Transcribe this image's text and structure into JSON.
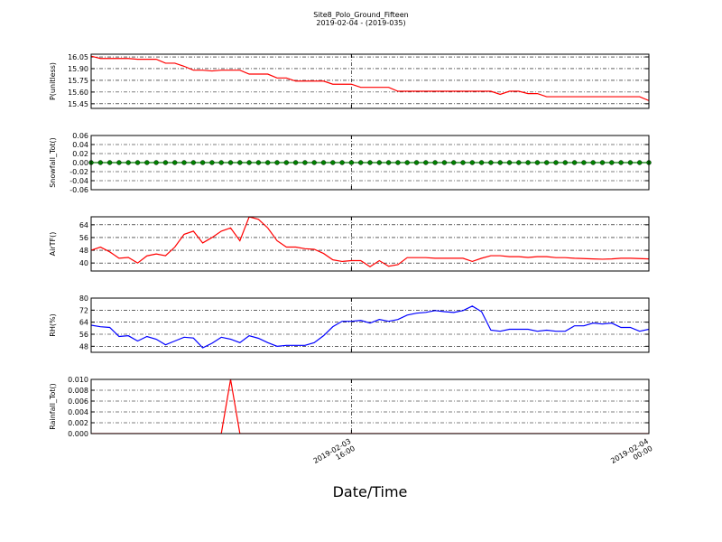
{
  "chart_data": {
    "type": "multi-panel-line",
    "title": "Site8_Polo_Ground_Fifteen",
    "subtitle": "2019-02-04 - (2019-035)",
    "xlabel": "Date/Time",
    "x": [
      "2019-02-03 09:00",
      "2019-02-03 09:15",
      "2019-02-03 09:30",
      "2019-02-03 09:45",
      "2019-02-03 10:00",
      "2019-02-03 10:15",
      "2019-02-03 10:30",
      "2019-02-03 10:45",
      "2019-02-03 11:00",
      "2019-02-03 11:15",
      "2019-02-03 11:30",
      "2019-02-03 11:45",
      "2019-02-03 12:00",
      "2019-02-03 12:15",
      "2019-02-03 12:30",
      "2019-02-03 12:45",
      "2019-02-03 13:00",
      "2019-02-03 13:15",
      "2019-02-03 13:30",
      "2019-02-03 13:45",
      "2019-02-03 14:00",
      "2019-02-03 14:15",
      "2019-02-03 14:30",
      "2019-02-03 14:45",
      "2019-02-03 15:00",
      "2019-02-03 15:15",
      "2019-02-03 15:30",
      "2019-02-03 15:45",
      "2019-02-03 16:00",
      "2019-02-03 16:15",
      "2019-02-03 16:30",
      "2019-02-03 16:45",
      "2019-02-03 17:00",
      "2019-02-03 17:15",
      "2019-02-03 17:30",
      "2019-02-03 17:45",
      "2019-02-03 18:00",
      "2019-02-03 18:15",
      "2019-02-03 18:30",
      "2019-02-03 18:45",
      "2019-02-03 19:00",
      "2019-02-03 19:15",
      "2019-02-03 19:30",
      "2019-02-03 19:45",
      "2019-02-03 20:00",
      "2019-02-03 20:15",
      "2019-02-03 20:30",
      "2019-02-03 20:45",
      "2019-02-03 21:00",
      "2019-02-03 21:15",
      "2019-02-03 21:30",
      "2019-02-03 21:45",
      "2019-02-03 22:00",
      "2019-02-03 22:15",
      "2019-02-03 22:30",
      "2019-02-03 22:45",
      "2019-02-03 23:00",
      "2019-02-03 23:15",
      "2019-02-03 23:30",
      "2019-02-03 23:45",
      "2019-02-04 00:00"
    ],
    "xlim": [
      "2019-02-03 09:00",
      "2019-02-04 00:00"
    ],
    "xticks": [
      "2019-02-03 16:00",
      "2019-02-04 00:00"
    ],
    "grid": true,
    "panels": [
      {
        "ylabel": "P(unitless)",
        "ylim": [
          15.39,
          16.085
        ],
        "yticks": [
          15.45,
          {
            "value": 15.6,
            "label": "15.60"
          },
          15.75,
          {
            "value": 15.9,
            "label": "15.90"
          },
          16.05
        ],
        "series": [
          {
            "color": "#ff0000",
            "marker": false,
            "values": [
              16.06,
              16.03,
              16.03,
              16.03,
              16.03,
              16.02,
              16.02,
              16.02,
              15.97,
              15.97,
              15.93,
              15.88,
              15.88,
              15.87,
              15.88,
              15.88,
              15.88,
              15.83,
              15.83,
              15.83,
              15.78,
              15.78,
              15.74,
              15.74,
              15.74,
              15.74,
              15.7,
              15.7,
              15.7,
              15.66,
              15.66,
              15.66,
              15.66,
              15.61,
              15.61,
              15.61,
              15.61,
              15.61,
              15.61,
              15.61,
              15.61,
              15.61,
              15.61,
              15.61,
              15.57,
              15.61,
              15.61,
              15.58,
              15.58,
              15.54,
              15.54,
              15.54,
              15.54,
              15.54,
              15.54,
              15.54,
              15.54,
              15.54,
              15.54,
              15.54,
              15.49
            ]
          }
        ]
      },
      {
        "ylabel": "Snowfall_Tot()",
        "ylim": [
          -0.06,
          0.06
        ],
        "yticks": [
          -0.06,
          -0.04,
          -0.02,
          {
            "value": 0,
            "label": "0.00"
          },
          0.02,
          0.04,
          0.06
        ],
        "series": [
          {
            "color": "#008000",
            "marker": true,
            "values": [
              0,
              0,
              0,
              0,
              0,
              0,
              0,
              0,
              0,
              0,
              0,
              0,
              0,
              0,
              0,
              0,
              0,
              0,
              0,
              0,
              0,
              0,
              0,
              0,
              0,
              0,
              0,
              0,
              0,
              0,
              0,
              0,
              0,
              0,
              0,
              0,
              0,
              0,
              0,
              0,
              0,
              0,
              0,
              0,
              0,
              0,
              0,
              0,
              0,
              0,
              0,
              0,
              0,
              0,
              0,
              0,
              0,
              0,
              0,
              0,
              0
            ]
          }
        ]
      },
      {
        "ylabel": "AirTF()",
        "ylim": [
          35,
          69
        ],
        "yticks": [
          40,
          48,
          56,
          64
        ],
        "series": [
          {
            "color": "#ff0000",
            "marker": false,
            "values": [
              48,
              50,
              47,
              43,
              43.5,
              40,
              44.5,
              45.7,
              44.6,
              50,
              58,
              60,
              52.6,
              56,
              60,
              62,
              54,
              69,
              67.4,
              62,
              54,
              50,
              50,
              49,
              48.6,
              46,
              42,
              41,
              41.5,
              41.5,
              37.7,
              41.5,
              38,
              39,
              43.4,
              43.4,
              43.4,
              43,
              43,
              43,
              43,
              41,
              43,
              44.6,
              44.6,
              44,
              44,
              43.5,
              44,
              44,
              43.4,
              43.4,
              43,
              42.8,
              42.6,
              42.4,
              42.6,
              43,
              43,
              42.8,
              42.6
            ]
          }
        ]
      },
      {
        "ylabel": "RH(%)",
        "ylim": [
          44,
          80
        ],
        "yticks": [
          48,
          56,
          64,
          72,
          80
        ],
        "series": [
          {
            "color": "#0000ff",
            "marker": false,
            "values": [
              62,
              61,
              60.5,
              54.5,
              55,
              51.5,
              54.5,
              52.7,
              49,
              51.5,
              54,
              53.5,
              47,
              50,
              54,
              52.7,
              50.4,
              55,
              53.3,
              50.4,
              48,
              48.6,
              48.6,
              48.6,
              50.4,
              55,
              61,
              64.6,
              64.6,
              65.2,
              63.4,
              65.8,
              64.6,
              65.8,
              68.7,
              70,
              70.5,
              71.7,
              71,
              70.5,
              71.7,
              74.7,
              71,
              58.7,
              58,
              59.3,
              59.3,
              59.3,
              58,
              58.7,
              58,
              58,
              61.6,
              61.6,
              63.4,
              62.8,
              63.4,
              60.5,
              60.5,
              58,
              59.3
            ]
          }
        ]
      },
      {
        "ylabel": "Rainfall_Tot()",
        "ylim": [
          0,
          0.01
        ],
        "yticks": [
          {
            "value": 0,
            "label": "0.000"
          },
          {
            "value": 0.002,
            "label": "0.002"
          },
          {
            "value": 0.004,
            "label": "0.004"
          },
          {
            "value": 0.006,
            "label": "0.006"
          },
          {
            "value": 0.008,
            "label": "0.008"
          },
          {
            "value": 0.01,
            "label": "0.010"
          }
        ],
        "series": [
          {
            "color": "#ff0000",
            "marker": false,
            "values": [
              0,
              0,
              0,
              0,
              0,
              0,
              0,
              0,
              0,
              0,
              0,
              0,
              0,
              0,
              0,
              0.01,
              0,
              0,
              0,
              0,
              0,
              0,
              0,
              0,
              0,
              0,
              0,
              0,
              0,
              0,
              0,
              0,
              0,
              0,
              0,
              0,
              0,
              0,
              0,
              0,
              0,
              0,
              0,
              0,
              0,
              0,
              0,
              0,
              0,
              0,
              0,
              0,
              0,
              0,
              0,
              0,
              0,
              0,
              0,
              0,
              0
            ]
          }
        ]
      }
    ]
  }
}
